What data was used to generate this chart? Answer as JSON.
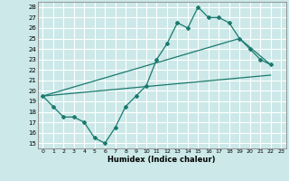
{
  "xlabel": "Humidex (Indice chaleur)",
  "bg_color": "#cce8e8",
  "grid_color": "#ffffff",
  "line_color": "#1a7a6e",
  "xlim": [
    -0.5,
    23.5
  ],
  "ylim": [
    14.5,
    28.5
  ],
  "xticks": [
    0,
    1,
    2,
    3,
    4,
    5,
    6,
    7,
    8,
    9,
    10,
    11,
    12,
    13,
    14,
    15,
    16,
    17,
    18,
    19,
    20,
    21,
    22,
    23
  ],
  "yticks": [
    15,
    16,
    17,
    18,
    19,
    20,
    21,
    22,
    23,
    24,
    25,
    26,
    27,
    28
  ],
  "series1_x": [
    0,
    1,
    2,
    3,
    4,
    5,
    6,
    7,
    8,
    9,
    10,
    11,
    12,
    13,
    14,
    15,
    16,
    17,
    18,
    19,
    20,
    21,
    22
  ],
  "series1_y": [
    19.5,
    18.5,
    17.5,
    17.5,
    17.0,
    15.5,
    15.0,
    16.5,
    18.5,
    19.5,
    20.5,
    23.0,
    24.5,
    26.5,
    26.0,
    28.0,
    27.0,
    27.0,
    26.5,
    25.0,
    24.0,
    23.0,
    22.5
  ],
  "line2_x": [
    0,
    22
  ],
  "line2_y": [
    19.5,
    21.5
  ],
  "line3_x": [
    0,
    19,
    22
  ],
  "line3_y": [
    19.5,
    25.0,
    22.5
  ]
}
